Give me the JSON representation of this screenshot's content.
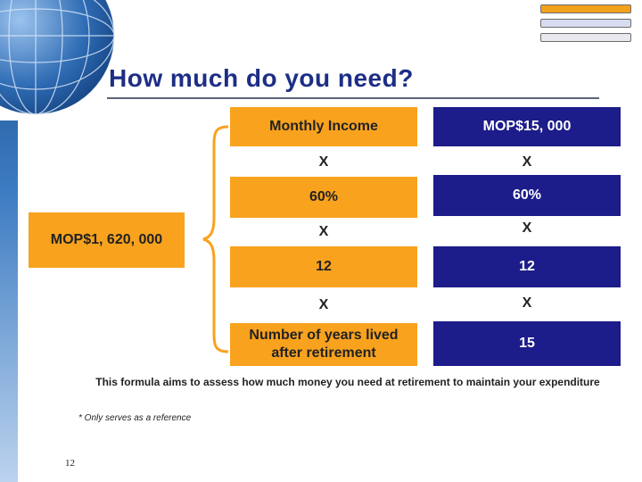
{
  "colors": {
    "orange": "#f9a21e",
    "navy": "#1c1c8a",
    "title": "#1c2e86"
  },
  "title": "How much do you need?",
  "result": "MOP$1, 620, 000",
  "left_column": {
    "header": "Monthly Income",
    "x1": "X",
    "rate": "60%",
    "x2": "X",
    "months": "12",
    "x3": "X",
    "years_label": "Number of years lived after retirement"
  },
  "right_column": {
    "header": "MOP$15, 000",
    "x1": "X",
    "rate": "60%",
    "x2": "X",
    "months": "12",
    "x3": "X",
    "years": "15"
  },
  "note": "This formula aims to assess how much money you need at retirement to maintain your expenditure",
  "footnote": "* Only serves as a reference",
  "page_number": "12"
}
